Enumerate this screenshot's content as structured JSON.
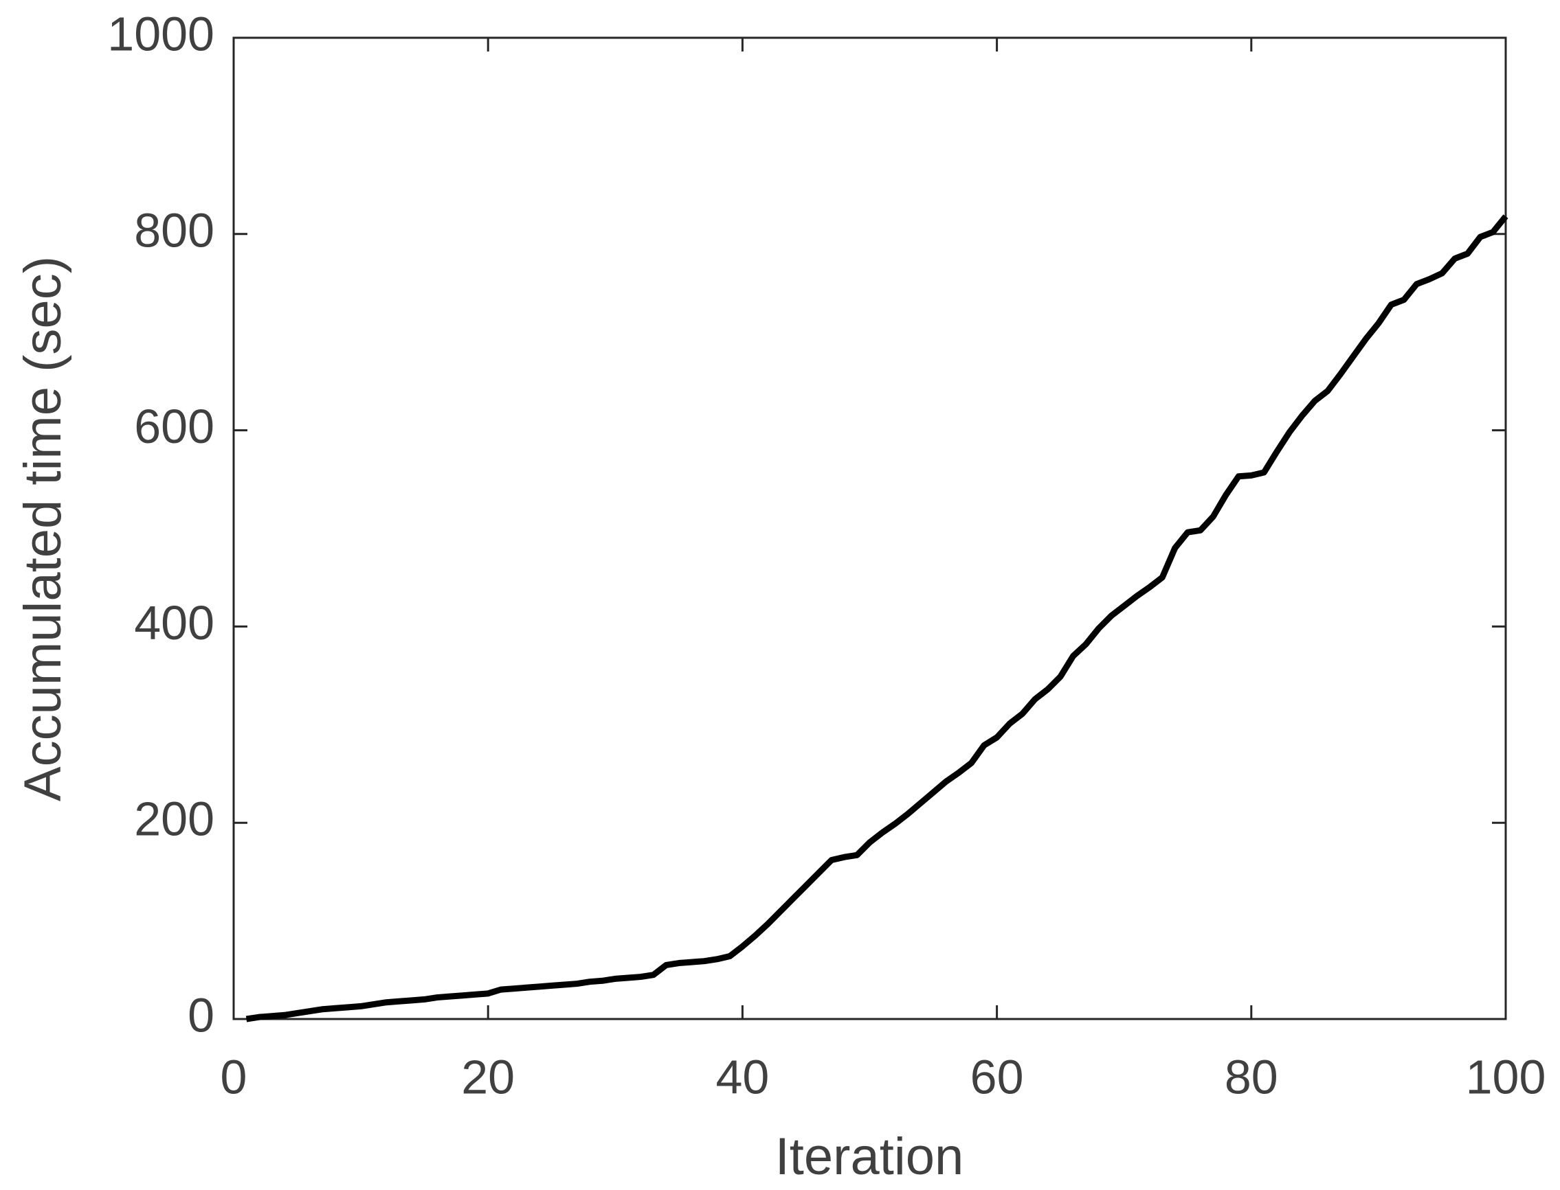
{
  "chart_data": {
    "type": "line",
    "xlabel": "Iteration",
    "ylabel": "Accumulated time (sec)",
    "x": [
      1,
      2,
      3,
      4,
      5,
      6,
      7,
      8,
      9,
      10,
      11,
      12,
      13,
      14,
      15,
      16,
      17,
      18,
      19,
      20,
      21,
      22,
      23,
      24,
      25,
      26,
      27,
      28,
      29,
      30,
      31,
      32,
      33,
      34,
      35,
      36,
      37,
      38,
      39,
      40,
      41,
      42,
      43,
      44,
      45,
      46,
      47,
      48,
      49,
      50,
      51,
      52,
      53,
      54,
      55,
      56,
      57,
      58,
      59,
      60,
      61,
      62,
      63,
      64,
      65,
      66,
      67,
      68,
      69,
      70,
      71,
      72,
      73,
      74,
      75,
      76,
      77,
      78,
      79,
      80,
      81,
      82,
      83,
      84,
      85,
      86,
      87,
      88,
      89,
      90,
      91,
      92,
      93,
      94,
      95,
      96,
      97,
      98,
      99,
      100
    ],
    "series": [
      {
        "color": "#000000",
        "values": [
          0,
          2,
          3,
          4,
          6,
          8,
          10,
          11,
          12,
          13,
          15,
          17,
          18,
          19,
          20,
          22,
          23,
          24,
          25,
          26,
          30,
          31,
          32,
          33,
          34,
          35,
          36,
          38,
          39,
          41,
          42,
          43,
          45,
          55,
          57,
          58,
          59,
          61,
          64,
          74,
          85,
          97,
          110,
          123,
          136,
          149,
          162,
          165,
          167,
          180,
          190,
          199,
          209,
          220,
          231,
          242,
          251,
          261,
          279,
          287,
          301,
          311,
          326,
          336,
          349,
          370,
          382,
          398,
          411,
          421,
          431,
          440,
          450,
          480,
          496,
          498,
          512,
          534,
          553,
          554,
          557,
          578,
          598,
          615,
          630,
          640,
          657,
          675,
          693,
          709,
          728,
          733,
          749,
          754,
          760,
          775,
          780,
          797,
          802,
          818
        ]
      }
    ],
    "xlim": [
      0,
      100
    ],
    "xticks": [
      0,
      20,
      40,
      60,
      80,
      100
    ],
    "ylim": [
      0,
      1000
    ],
    "yticks": [
      0,
      200,
      400,
      600,
      800,
      1000
    ],
    "grid": false
  }
}
